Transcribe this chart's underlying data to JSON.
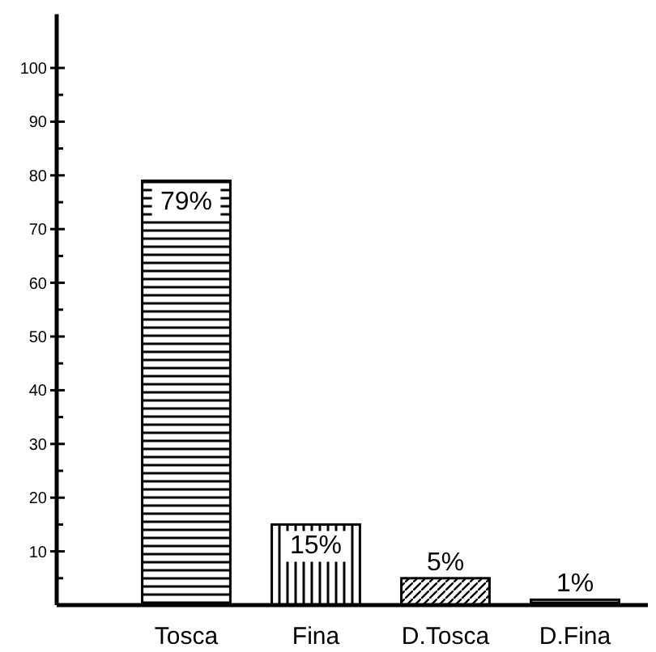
{
  "chart_data": {
    "type": "bar",
    "categories": [
      "Tosca",
      "Fina",
      "D.Tosca",
      "D.Fina"
    ],
    "values": [
      79,
      15,
      5,
      1
    ],
    "colors": [
      "#000000",
      "#000000",
      "#000000",
      "#000000"
    ],
    "value_labels": [
      "79%",
      "15%",
      "5%",
      "1%"
    ],
    "ylim": [
      0,
      110
    ],
    "yticks": [
      {
        "value": 5,
        "label": null
      },
      10,
      {
        "value": 15,
        "label": null
      },
      20,
      {
        "value": 25,
        "label": null
      },
      30,
      {
        "value": 35,
        "label": null
      },
      40,
      {
        "value": 45,
        "label": null
      },
      50,
      {
        "value": 55,
        "label": null
      },
      60,
      {
        "value": 65,
        "label": null
      },
      70,
      {
        "value": 75,
        "label": null
      },
      80,
      {
        "value": 85,
        "label": null
      },
      90,
      {
        "value": 95,
        "label": null
      },
      100
    ],
    "grid": false
  }
}
